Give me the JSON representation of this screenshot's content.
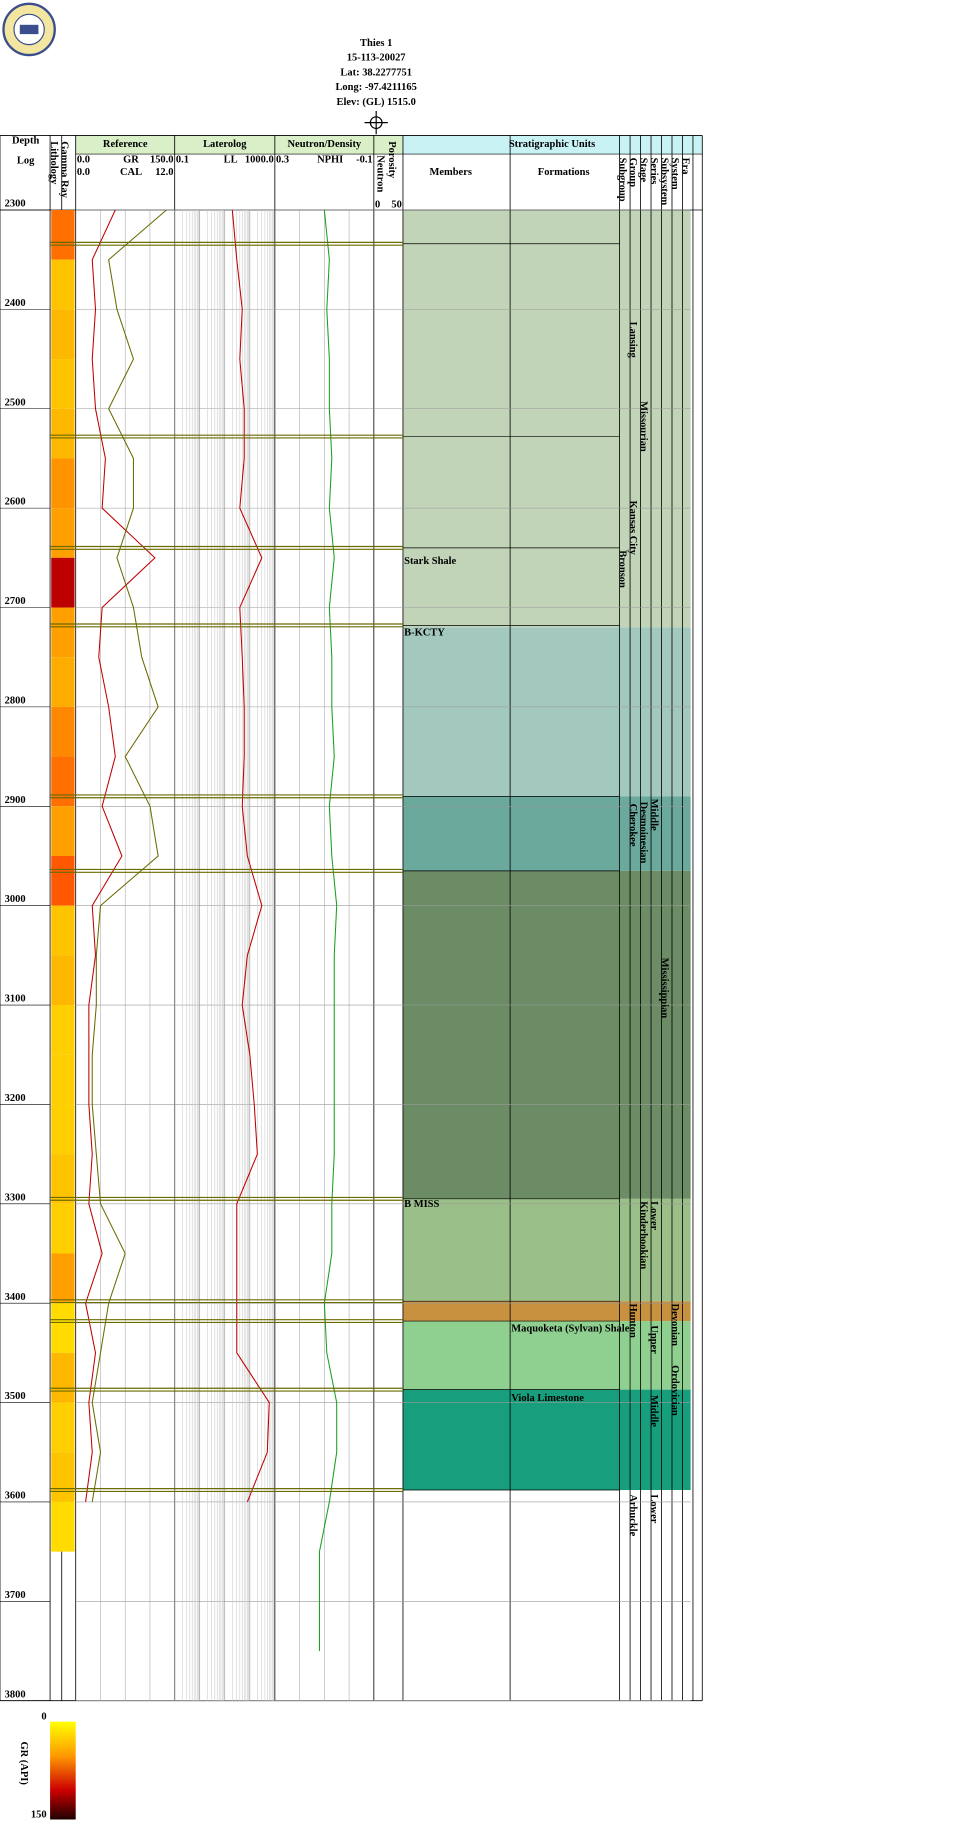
{
  "header": {
    "lines": [
      "Thies 1",
      "15-113-20027",
      "Lat: 38.2277751",
      "Long: -97.4211165",
      "Elev: (GL) 1515.0"
    ]
  },
  "columns": {
    "depth": "Depth",
    "log": "Log",
    "lithology": "Lithology",
    "gamma": "Gamma Ray",
    "porosity": "Porosity",
    "neutron": "Neutron",
    "strat": "Stratigraphic Units",
    "members": "Members",
    "formations": "Formations",
    "ranks": [
      "Subgroup",
      "Group",
      "Stage",
      "Series",
      "Subsystem",
      "System",
      "Era"
    ]
  },
  "chart_data": {
    "type": "welllog",
    "ylim": [
      2300,
      3800
    ],
    "yticks": [
      2300,
      2400,
      2500,
      2600,
      2700,
      2800,
      2900,
      3000,
      3100,
      3200,
      3300,
      3400,
      3500,
      3600,
      3700,
      3800
    ],
    "depths": [
      2300,
      2350,
      2400,
      2450,
      2500,
      2550,
      2600,
      2650,
      2700,
      2750,
      2800,
      2850,
      2900,
      2950,
      3000,
      3050,
      3100,
      3150,
      3200,
      3250,
      3300,
      3350,
      3400,
      3450,
      3500,
      3550,
      3600,
      3650,
      3700,
      3750
    ],
    "tracks": [
      {
        "title": "Reference",
        "curves": [
          {
            "name": "GR",
            "color": "#c00000",
            "xlim": [
              {
                "value": 0,
                "label": "0.0"
              },
              {
                "value": 150,
                "label": "150.0"
              }
            ],
            "values": [
              60,
              25,
              30,
              25,
              30,
              45,
              40,
              120,
              40,
              35,
              50,
              60,
              40,
              70,
              25,
              30,
              20,
              20,
              20,
              25,
              20,
              40,
              15,
              30,
              20,
              25,
              15,
              null,
              null,
              null
            ]
          },
          {
            "name": "CAL",
            "color": "#6b6b00",
            "xlim": [
              {
                "value": 0,
                "label": "0.0"
              },
              {
                "value": 12,
                "label": "12.0"
              }
            ],
            "values": [
              11,
              4,
              5,
              7,
              4,
              7,
              7,
              5,
              7,
              8,
              10,
              6,
              9,
              10,
              3,
              2.5,
              2.5,
              2,
              2,
              2.5,
              3,
              6,
              4,
              3,
              2,
              3,
              2,
              null,
              null,
              null
            ]
          }
        ]
      },
      {
        "title": "Laterolog",
        "log": true,
        "curves": [
          {
            "name": "LL",
            "color": "#c00000",
            "xlim": [
              0.1,
              {
                "value": 1000,
                "label": "1000.0"
              }
            ],
            "values": [
              20,
              30,
              50,
              40,
              60,
              60,
              40,
              300,
              40,
              50,
              60,
              60,
              50,
              80,
              300,
              80,
              50,
              100,
              150,
              200,
              30,
              30,
              30,
              30,
              600,
              500,
              80,
              null,
              null,
              null
            ]
          }
        ]
      },
      {
        "title": "Neutron/Density",
        "curves": [
          {
            "name": "NPHI",
            "color": "#1aa01a",
            "xlim": [
              0.3,
              -0.1
            ],
            "values": [
              0.1,
              0.08,
              0.09,
              0.08,
              0.08,
              0.07,
              0.08,
              0.06,
              0.08,
              0.07,
              0.07,
              0.06,
              0.08,
              0.07,
              0.05,
              0.06,
              0.06,
              0.06,
              0.06,
              0.06,
              0.07,
              0.07,
              0.1,
              0.09,
              0.05,
              0.05,
              0.08,
              0.12,
              0.12,
              0.12
            ]
          }
        ]
      }
    ],
    "porosity_scale": [
      0,
      50
    ],
    "intervals": [
      {
        "top": 2300,
        "base": 2720,
        "color": "#c2d4b8"
      },
      {
        "top": 2720,
        "base": 2890,
        "color": "#a3c8be"
      },
      {
        "top": 2890,
        "base": 2965,
        "color": "#6aa99c"
      },
      {
        "top": 2965,
        "base": 3295,
        "color": "#6b8c65"
      },
      {
        "top": 3295,
        "base": 3398,
        "color": "#9bbf88"
      },
      {
        "top": 3398,
        "base": 3418,
        "color": "#c8913f"
      },
      {
        "top": 3418,
        "base": 3487,
        "color": "#8fcf90"
      },
      {
        "top": 3487,
        "base": 3588,
        "color": "#179e7c"
      }
    ],
    "tops": [
      2334,
      2528,
      2640,
      2718,
      2890,
      2965,
      3295,
      3398,
      3418,
      3487,
      3588
    ],
    "members": [
      {
        "name": "Stark Shale",
        "depth": 2648
      },
      {
        "name": "B-KCTY",
        "depth": 2720
      },
      {
        "name": "B MISS",
        "depth": 3295
      }
    ],
    "formations": [
      {
        "name": "Maquoketa (Sylvan) Shale",
        "depth": 3420
      },
      {
        "name": "Viola Limestone",
        "depth": 3490
      }
    ],
    "units": [
      {
        "name": "Bronson",
        "rank": 0,
        "depth": 2640
      },
      {
        "name": "Lansing",
        "rank": 1,
        "depth": 2410
      },
      {
        "name": "Kansas City",
        "rank": 1,
        "depth": 2590
      },
      {
        "name": "Cherokee",
        "rank": 1,
        "depth": 2895
      },
      {
        "name": "Hunton",
        "rank": 1,
        "depth": 3398
      },
      {
        "name": "Arbuckle",
        "rank": 1,
        "depth": 3590
      },
      {
        "name": "Missourian",
        "rank": 2,
        "depth": 2490
      },
      {
        "name": "Desmoinesian",
        "rank": 2,
        "depth": 2893
      },
      {
        "name": "Kinderhookian",
        "rank": 2,
        "depth": 3295
      },
      {
        "name": "Middle",
        "rank": 3,
        "depth": 2890
      },
      {
        "name": "Lower",
        "rank": 3,
        "depth": 3295
      },
      {
        "name": "Upper",
        "rank": 3,
        "depth": 3420
      },
      {
        "name": "Middle",
        "rank": 3,
        "depth": 3490
      },
      {
        "name": "Lower",
        "rank": 3,
        "depth": 3590
      },
      {
        "name": "Mississippian",
        "rank": 4,
        "depth": 3050
      },
      {
        "name": "Devonian",
        "rank": 5,
        "depth": 3398
      },
      {
        "name": "Ordovician",
        "rank": 5,
        "depth": 3460
      }
    ],
    "colorbar": {
      "label": "GR (API)",
      "range": [
        0,
        150
      ]
    }
  }
}
